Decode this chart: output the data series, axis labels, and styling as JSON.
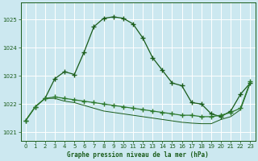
{
  "title": "Graphe pression niveau de la mer (hPa)",
  "bg_color": "#cce8f0",
  "grid_color": "#ffffff",
  "line_color1": "#1a5c1a",
  "line_color2": "#2d7a2d",
  "line_color3": "#1a5c1a",
  "xlim": [
    -0.5,
    23.5
  ],
  "ylim": [
    1020.7,
    1025.6
  ],
  "yticks": [
    1021,
    1022,
    1023,
    1024,
    1025
  ],
  "xticks": [
    0,
    1,
    2,
    3,
    4,
    5,
    6,
    7,
    8,
    9,
    10,
    11,
    12,
    13,
    14,
    15,
    16,
    17,
    18,
    19,
    20,
    21,
    22,
    23
  ],
  "series1_x": [
    0,
    1,
    2,
    3,
    4,
    5,
    6,
    7,
    8,
    9,
    10,
    11,
    12,
    13,
    14,
    15,
    16,
    17,
    18,
    19,
    20,
    21,
    22,
    23
  ],
  "series1_y": [
    1021.4,
    1021.9,
    1022.2,
    1022.9,
    1023.15,
    1023.05,
    1023.85,
    1024.75,
    1025.05,
    1025.1,
    1025.05,
    1024.85,
    1024.35,
    1023.65,
    1023.2,
    1022.75,
    1022.65,
    1022.05,
    1022.0,
    1021.65,
    1021.55,
    1021.75,
    1022.35,
    1022.75
  ],
  "series2_x": [
    0,
    1,
    2,
    3,
    4,
    5,
    6,
    7,
    8,
    9,
    10,
    11,
    12,
    13,
    14,
    15,
    16,
    17,
    18,
    19,
    20,
    21,
    22,
    23
  ],
  "series2_y": [
    1021.4,
    1021.9,
    1022.2,
    1022.25,
    1022.2,
    1022.15,
    1022.1,
    1022.05,
    1022.0,
    1021.95,
    1021.9,
    1021.85,
    1021.8,
    1021.75,
    1021.7,
    1021.65,
    1021.6,
    1021.6,
    1021.55,
    1021.55,
    1021.6,
    1021.7,
    1021.85,
    1022.8
  ],
  "series3_x": [
    0,
    1,
    2,
    3,
    4,
    5,
    6,
    7,
    8,
    9,
    10,
    11,
    12,
    13,
    14,
    15,
    16,
    17,
    18,
    19,
    20,
    21,
    22,
    23
  ],
  "series3_y": [
    1021.4,
    1021.9,
    1022.2,
    1022.2,
    1022.1,
    1022.05,
    1021.95,
    1021.85,
    1021.75,
    1021.7,
    1021.65,
    1021.6,
    1021.55,
    1021.5,
    1021.45,
    1021.4,
    1021.35,
    1021.32,
    1021.3,
    1021.3,
    1021.45,
    1021.55,
    1021.8,
    1022.75
  ]
}
